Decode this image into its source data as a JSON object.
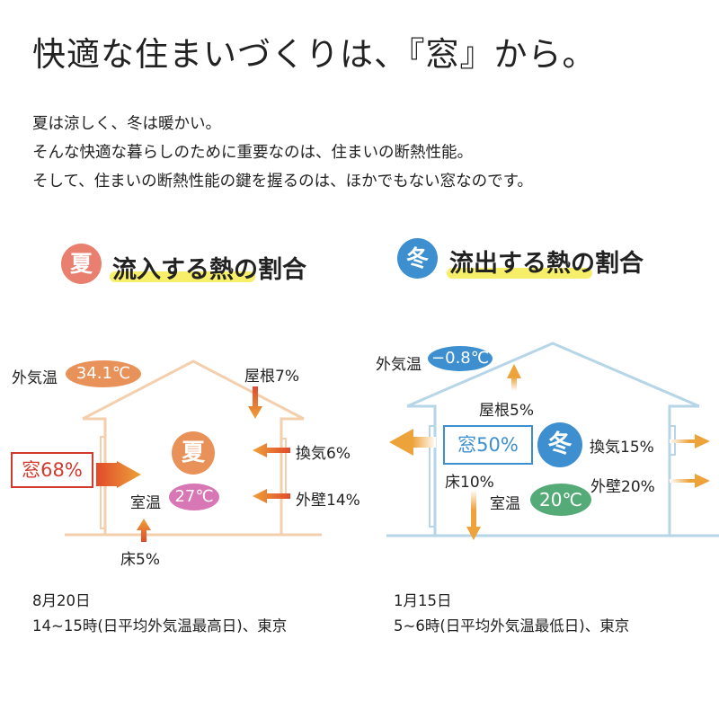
{
  "title": "快適な住まいづくりは、『窓』から。",
  "intro": [
    "夏は涼しく、冬は暖かい。",
    "そんな快適な暮らしのために重要なのは、住まいの断熱性能。",
    "そして、住まいの断熱性能の鍵を握るのは、ほかでもない窓なのです。"
  ],
  "summer": {
    "badge": "夏",
    "heading": "流入する熱の割合",
    "outside_label": "外気温",
    "outside_temp": "34.1℃",
    "roof": "屋根7%",
    "ventilation": "換気6%",
    "window": "窓68%",
    "wall": "外壁14%",
    "floor": "床5%",
    "room_label": "室温",
    "room_temp": "27℃",
    "season_mark": "夏",
    "date": "8月20日",
    "time_note": "14~15時(日平均外気温最高日)、東京",
    "color": "#e87f6f"
  },
  "winter": {
    "badge": "冬",
    "heading": "流出する熱の割合",
    "outside_label": "外気温",
    "outside_temp": "−0.8℃",
    "roof": "屋根5%",
    "ventilation": "換気15%",
    "window": "窓50%",
    "wall": "外壁20%",
    "floor": "床10%",
    "room_label": "室温",
    "room_temp": "20℃",
    "season_mark": "冬",
    "date": "1月15日",
    "time_note": "5~6時(日平均外気温最低日)、東京",
    "color": "#3d8fcf"
  },
  "colors": {
    "arrow": "#eda23a",
    "summer_house": "#f3cfae",
    "winter_house": "#b6d6e8",
    "highlight": "#f7ef6a",
    "window_red": "#d23a2e",
    "room_summer": "#d877b5",
    "room_winter": "#55ab78"
  }
}
